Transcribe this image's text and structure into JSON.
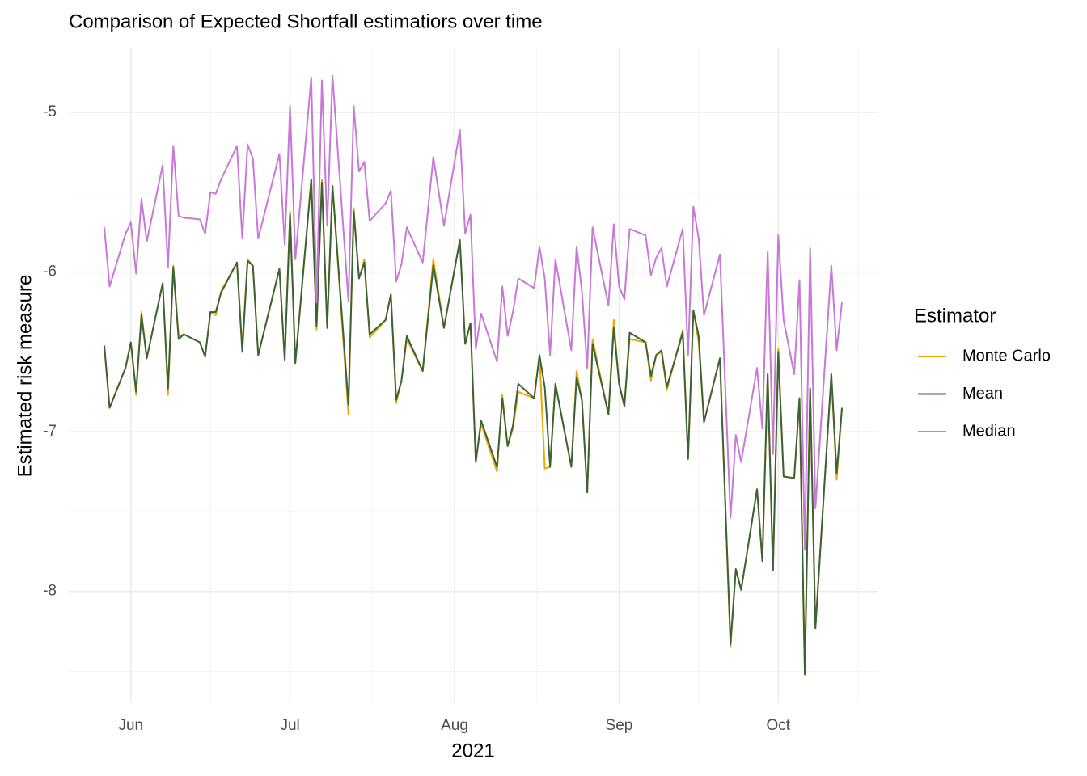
{
  "chart_data": {
    "type": "line",
    "title": "Comparison of Expected Shortfall estimatiors over time",
    "xlabel": "2021",
    "ylabel": "Estimated risk measure",
    "legend_title": "Estimator",
    "legend": "right",
    "grid": true,
    "xlim": [
      140.3,
      292.7
    ],
    "ylim": [
      -8.7,
      -4.6
    ],
    "xticks": [
      {
        "value": 152,
        "label": "Jun"
      },
      {
        "value": 182,
        "label": "Jul"
      },
      {
        "value": 213,
        "label": "Aug"
      },
      {
        "value": 244,
        "label": "Sep"
      },
      {
        "value": 274,
        "label": "Oct"
      }
    ],
    "xminor": [
      167,
      197.5,
      228.5,
      259,
      289
    ],
    "yticks": [
      -8,
      -7,
      -6,
      -5
    ],
    "yminor": [
      -8.5,
      -7.5,
      -6.5,
      -5.5
    ],
    "x": [
      147,
      148,
      151,
      152,
      153,
      154,
      155,
      158,
      159,
      160,
      161,
      162,
      165,
      166,
      167,
      168,
      169,
      172,
      173,
      174,
      175,
      176,
      180,
      181,
      182,
      183,
      186,
      187,
      188,
      189,
      190,
      193,
      194,
      195,
      196,
      197,
      200,
      201,
      202,
      203,
      204,
      207,
      209,
      211,
      214,
      215,
      216,
      217,
      218,
      221,
      222,
      223,
      224,
      225,
      228,
      229,
      230,
      231,
      232,
      235,
      236,
      237,
      238,
      239,
      242,
      243,
      244,
      245,
      246,
      249,
      250,
      251,
      252,
      253,
      256,
      257,
      258,
      259,
      260,
      263,
      265,
      266,
      267,
      270,
      271,
      272,
      273,
      274,
      275,
      277,
      278,
      279,
      280,
      281,
      284,
      285,
      286
    ],
    "series": [
      {
        "name": "Monte Carlo",
        "color": "#f0a500",
        "values": [
          -6.46,
          -6.85,
          -6.6,
          -6.44,
          -6.77,
          -6.25,
          -6.54,
          -6.07,
          -6.77,
          -5.96,
          -6.4,
          -6.39,
          -6.44,
          -6.53,
          -6.25,
          -6.27,
          -6.12,
          -5.94,
          -6.47,
          -5.92,
          -5.96,
          -6.52,
          -5.98,
          -6.55,
          -5.62,
          -6.57,
          -5.42,
          -6.36,
          -5.42,
          -6.35,
          -5.46,
          -6.89,
          -5.6,
          -6.04,
          -5.92,
          -6.41,
          -6.3,
          -6.14,
          -6.82,
          -6.68,
          -6.42,
          -6.62,
          -5.92,
          -6.35,
          -5.8,
          -6.45,
          -6.32,
          -7.19,
          -6.95,
          -7.25,
          -6.77,
          -7.09,
          -6.98,
          -6.75,
          -6.79,
          -6.52,
          -7.23,
          -7.22,
          -6.7,
          -7.22,
          -6.62,
          -6.8,
          -7.38,
          -6.42,
          -6.89,
          -6.3,
          -6.7,
          -6.84,
          -6.42,
          -6.44,
          -6.68,
          -6.52,
          -6.5,
          -6.74,
          -6.36,
          -7.17,
          -6.24,
          -6.44,
          -6.94,
          -6.54,
          -8.35,
          -7.86,
          -7.99,
          -7.36,
          -7.81,
          -6.64,
          -7.87,
          -6.48,
          -7.28,
          -7.29,
          -6.79,
          -8.52,
          -6.73,
          -8.23,
          -6.64,
          -7.3,
          -6.85
        ]
      },
      {
        "name": "Mean",
        "color": "#3b6338",
        "values": [
          -6.46,
          -6.85,
          -6.6,
          -6.44,
          -6.75,
          -6.27,
          -6.54,
          -6.07,
          -6.73,
          -5.97,
          -6.42,
          -6.39,
          -6.44,
          -6.53,
          -6.25,
          -6.25,
          -6.13,
          -5.94,
          -6.5,
          -5.93,
          -5.96,
          -6.52,
          -5.98,
          -6.55,
          -5.64,
          -6.57,
          -5.42,
          -6.34,
          -5.44,
          -6.35,
          -5.46,
          -6.83,
          -5.62,
          -6.04,
          -5.94,
          -6.39,
          -6.3,
          -6.14,
          -6.8,
          -6.68,
          -6.4,
          -6.62,
          -5.96,
          -6.35,
          -5.8,
          -6.45,
          -6.32,
          -7.19,
          -6.93,
          -7.22,
          -6.79,
          -7.09,
          -6.96,
          -6.7,
          -6.79,
          -6.52,
          -6.72,
          -7.22,
          -6.7,
          -7.22,
          -6.66,
          -6.8,
          -7.38,
          -6.45,
          -6.89,
          -6.35,
          -6.7,
          -6.84,
          -6.38,
          -6.44,
          -6.65,
          -6.52,
          -6.49,
          -6.72,
          -6.38,
          -7.17,
          -6.24,
          -6.4,
          -6.94,
          -6.54,
          -8.33,
          -7.86,
          -7.99,
          -7.36,
          -7.81,
          -6.64,
          -7.87,
          -6.5,
          -7.28,
          -7.29,
          -6.79,
          -8.52,
          -6.73,
          -8.23,
          -6.64,
          -7.26,
          -6.85
        ]
      },
      {
        "name": "Median",
        "color": "#c878d6",
        "values": [
          -5.72,
          -6.09,
          -5.76,
          -5.69,
          -6.01,
          -5.54,
          -5.81,
          -5.33,
          -5.97,
          -5.21,
          -5.65,
          -5.66,
          -5.67,
          -5.76,
          -5.5,
          -5.51,
          -5.42,
          -5.21,
          -5.79,
          -5.2,
          -5.29,
          -5.79,
          -5.26,
          -5.83,
          -4.96,
          -5.92,
          -4.78,
          -6.19,
          -4.8,
          -5.71,
          -4.77,
          -6.18,
          -4.96,
          -5.37,
          -5.31,
          -5.68,
          -5.57,
          -5.49,
          -6.06,
          -5.95,
          -5.72,
          -5.94,
          -5.28,
          -5.71,
          -5.11,
          -5.76,
          -5.64,
          -6.48,
          -6.26,
          -6.56,
          -6.09,
          -6.4,
          -6.25,
          -6.04,
          -6.1,
          -5.84,
          -6.04,
          -6.52,
          -5.92,
          -6.49,
          -5.84,
          -6.12,
          -6.6,
          -5.72,
          -6.21,
          -5.7,
          -6.09,
          -6.17,
          -5.73,
          -5.77,
          -6.02,
          -5.91,
          -5.85,
          -6.09,
          -5.73,
          -6.52,
          -5.59,
          -5.79,
          -6.27,
          -5.89,
          -7.54,
          -7.02,
          -7.19,
          -6.6,
          -6.98,
          -5.87,
          -7.14,
          -5.77,
          -6.3,
          -6.64,
          -6.05,
          -7.74,
          -5.85,
          -7.48,
          -5.96,
          -6.49,
          -6.19
        ]
      }
    ]
  }
}
